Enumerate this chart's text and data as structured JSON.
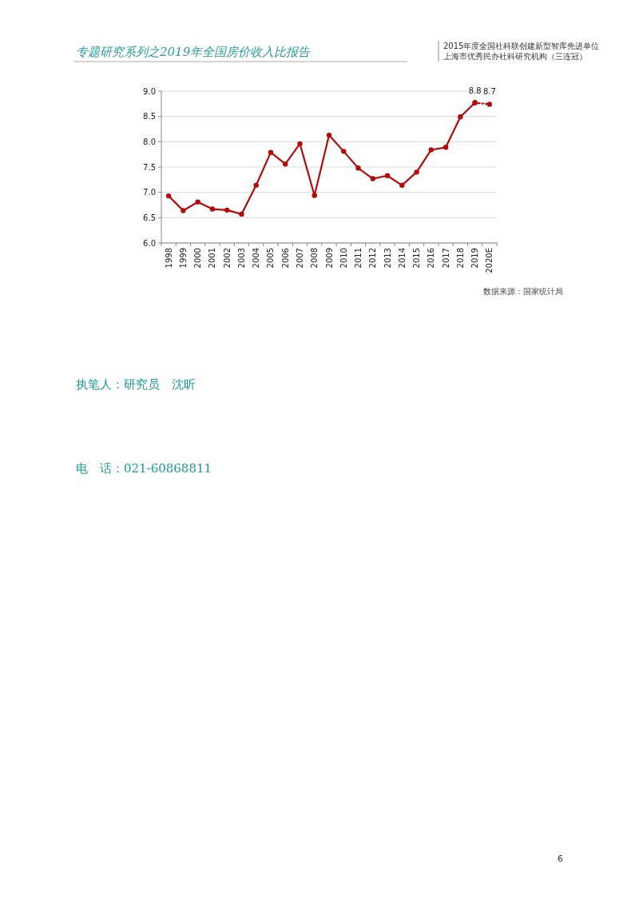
{
  "chart_data": {
    "type": "line",
    "title": "专题研究系列之2019年全国房价收入比报告",
    "categories": [
      "1998",
      "1999",
      "2000",
      "2001",
      "2002",
      "2003",
      "2004",
      "2005",
      "2006",
      "2007",
      "2008",
      "2009",
      "2010",
      "2011",
      "2012",
      "2013",
      "2014",
      "2015",
      "2016",
      "2017",
      "2018",
      "2019",
      "2020E"
    ],
    "series": [
      {
        "color": "#b40a0a",
        "line_style": "solid",
        "values": [
          6.93,
          6.64,
          6.81,
          6.67,
          6.65,
          6.57,
          7.14,
          7.79,
          7.56,
          7.96,
          6.94,
          8.13,
          7.81,
          7.48,
          7.27,
          7.33,
          7.14,
          7.4,
          7.84,
          7.89,
          8.49,
          8.77,
          null
        ]
      },
      {
        "color": "#b40a0a",
        "line_style": "dotted",
        "values": [
          null,
          null,
          null,
          null,
          null,
          null,
          null,
          null,
          null,
          null,
          null,
          null,
          null,
          null,
          null,
          null,
          null,
          null,
          null,
          null,
          null,
          8.77,
          8.74
        ],
        "value_labels": [
          null,
          null,
          null,
          null,
          null,
          null,
          null,
          null,
          null,
          null,
          null,
          null,
          null,
          null,
          null,
          null,
          null,
          null,
          null,
          null,
          null,
          "8.8",
          "8.7"
        ]
      }
    ],
    "ylim": [
      6,
      9
    ],
    "yticks": [
      {
        "value": 6,
        "label": "6.0"
      },
      {
        "value": 6.5,
        "label": "6.5"
      },
      {
        "value": 7,
        "label": "7.0"
      },
      {
        "value": 7.5,
        "label": "7.5"
      },
      {
        "value": 8,
        "label": "8.0"
      },
      {
        "value": 8.5,
        "label": "8.5"
      },
      {
        "value": 9,
        "label": "9.0"
      }
    ],
    "grid": "y",
    "marker": "circle",
    "annotations": [
      "2015年度全国社科联创建新型智库先进单位",
      "上海市优秀民办社科研究机构（三连冠）",
      "数据来源：国家统计局",
      "执笔人：研究员　沈昕",
      "电　话：021-60868811",
      "6"
    ]
  }
}
